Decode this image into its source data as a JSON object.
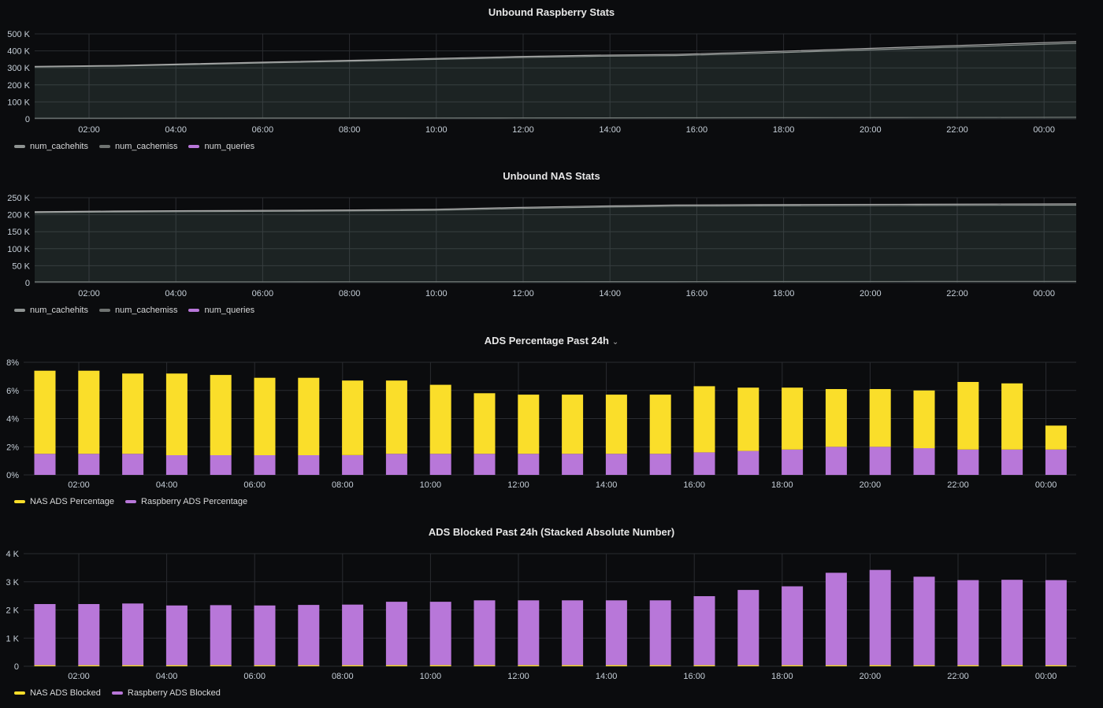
{
  "chart_data": [
    {
      "id": "raspberry",
      "type": "area",
      "title": "Unbound Raspberry Stats",
      "x_ticks": [
        "02:00",
        "04:00",
        "06:00",
        "08:00",
        "10:00",
        "12:00",
        "14:00",
        "16:00",
        "18:00",
        "20:00",
        "22:00",
        "00:00"
      ],
      "y_ticks": [
        "0",
        "100 K",
        "200 K",
        "300 K",
        "400 K",
        "500 K"
      ],
      "ylim": [
        0,
        500000
      ],
      "series": [
        {
          "name": "num_cachehits",
          "color": "#8e9391",
          "values": [
            305000,
            310000,
            320000,
            330000,
            340000,
            350000,
            360000,
            368000,
            372000,
            385000,
            400000,
            415000,
            430000,
            445000
          ]
        },
        {
          "name": "num_cachemiss",
          "color": "#6f7371",
          "values": [
            4000,
            4000,
            4500,
            5000,
            5000,
            5500,
            6000,
            6500,
            7000,
            7500,
            8000,
            8500,
            9000,
            9500
          ]
        },
        {
          "name": "num_queries",
          "color": "#b877d9",
          "values": [
            309000,
            314000,
            324500,
            335000,
            345000,
            355500,
            366000,
            374500,
            379000,
            392500,
            408000,
            423500,
            439000,
            454500
          ]
        }
      ],
      "legend": [
        "num_cachehits",
        "num_cachemiss",
        "num_queries"
      ]
    },
    {
      "id": "nas",
      "type": "area",
      "title": "Unbound NAS Stats",
      "x_ticks": [
        "02:00",
        "04:00",
        "06:00",
        "08:00",
        "10:00",
        "12:00",
        "14:00",
        "16:00",
        "18:00",
        "20:00",
        "22:00",
        "00:00"
      ],
      "y_ticks": [
        "0",
        "50 K",
        "100 K",
        "150 K",
        "200 K",
        "250 K"
      ],
      "ylim": [
        0,
        250000
      ],
      "series": [
        {
          "name": "num_cachehits",
          "color": "#8e9391",
          "values": [
            206000,
            208000,
            209000,
            210000,
            211000,
            213000,
            218000,
            222000,
            225000,
            226000,
            226500,
            227000,
            227500,
            228000
          ]
        },
        {
          "name": "num_cachemiss",
          "color": "#6f7371",
          "values": [
            2500,
            2600,
            2700,
            2800,
            2900,
            3000,
            3100,
            3200,
            3300,
            3400,
            3500,
            3600,
            3700,
            3800
          ]
        },
        {
          "name": "num_queries",
          "color": "#b877d9",
          "values": [
            208500,
            210600,
            211700,
            212800,
            213900,
            216000,
            221100,
            225200,
            228300,
            229400,
            230000,
            230600,
            231200,
            231800
          ]
        }
      ],
      "legend": [
        "num_cachehits",
        "num_cachemiss",
        "num_queries"
      ]
    },
    {
      "id": "ads-pct",
      "type": "bar",
      "stacked": true,
      "title": "ADS Percentage Past 24h",
      "x_ticks": [
        "02:00",
        "04:00",
        "06:00",
        "08:00",
        "10:00",
        "12:00",
        "14:00",
        "16:00",
        "18:00",
        "20:00",
        "22:00",
        "00:00"
      ],
      "y_ticks": [
        "0%",
        "2%",
        "4%",
        "6%",
        "8%"
      ],
      "ylim": [
        0,
        8
      ],
      "series": [
        {
          "name": "Raspberry ADS Percentage",
          "color": "#b877d9",
          "values": [
            1.5,
            1.5,
            1.5,
            1.4,
            1.4,
            1.4,
            1.4,
            1.4,
            1.5,
            1.5,
            1.5,
            1.5,
            1.5,
            1.5,
            1.5,
            1.6,
            1.7,
            1.8,
            2.0,
            2.0,
            1.9,
            1.8,
            1.8,
            1.8
          ]
        },
        {
          "name": "NAS ADS Percentage",
          "color": "#fade2a",
          "values": [
            5.9,
            5.9,
            5.7,
            5.8,
            5.7,
            5.5,
            5.5,
            5.3,
            5.2,
            4.9,
            4.3,
            4.2,
            4.2,
            4.2,
            4.2,
            4.7,
            4.5,
            4.4,
            4.1,
            4.1,
            4.1,
            4.8,
            4.7,
            1.7
          ]
        }
      ],
      "legend": [
        "NAS ADS Percentage",
        "Raspberry ADS Percentage"
      ]
    },
    {
      "id": "ads-blocked",
      "type": "bar",
      "stacked": true,
      "title": "ADS Blocked Past 24h (Stacked Absolute Number)",
      "x_ticks": [
        "02:00",
        "04:00",
        "06:00",
        "08:00",
        "10:00",
        "12:00",
        "14:00",
        "16:00",
        "18:00",
        "20:00",
        "22:00",
        "00:00"
      ],
      "y_ticks": [
        "0",
        "1 K",
        "2 K",
        "3 K",
        "4 K"
      ],
      "ylim": [
        0,
        4000
      ],
      "series": [
        {
          "name": "NAS ADS Blocked",
          "color": "#fade2a",
          "values": [
            40,
            40,
            40,
            40,
            40,
            40,
            40,
            40,
            40,
            40,
            40,
            40,
            40,
            40,
            40,
            40,
            40,
            40,
            40,
            40,
            40,
            40,
            40,
            40
          ]
        },
        {
          "name": "Raspberry ADS Blocked",
          "color": "#b877d9",
          "values": [
            2170,
            2170,
            2190,
            2120,
            2130,
            2120,
            2140,
            2150,
            2250,
            2250,
            2300,
            2300,
            2300,
            2300,
            2300,
            2450,
            2670,
            2800,
            3280,
            3380,
            3140,
            3020,
            3030,
            3020
          ]
        }
      ],
      "legend": [
        "NAS ADS Blocked",
        "Raspberry ADS Blocked"
      ]
    }
  ]
}
